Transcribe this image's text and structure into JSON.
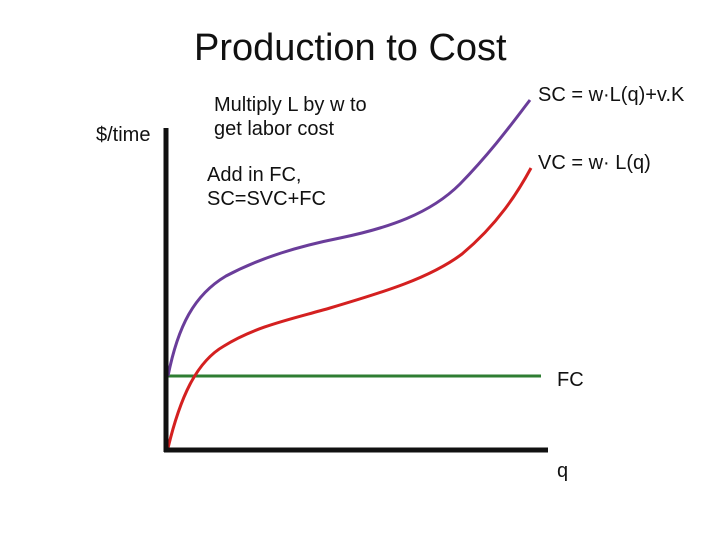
{
  "title": "Production to Cost",
  "axes": {
    "y_label": "$/time",
    "x_label": "q"
  },
  "notes": {
    "labor_cost": [
      "Multiply L by w to",
      "get labor cost"
    ],
    "add_fc": [
      "Add in FC,",
      "SC=SVC+FC"
    ]
  },
  "curves": {
    "sc": {
      "label": "SC = w·L(q)+v.K",
      "color": "#6a3d9a"
    },
    "vc": {
      "label": "VC = w· L(q)",
      "color": "#d42020"
    },
    "fc": {
      "label": "FC",
      "color": "#2e7d32"
    }
  },
  "axis_color": "#111111"
}
